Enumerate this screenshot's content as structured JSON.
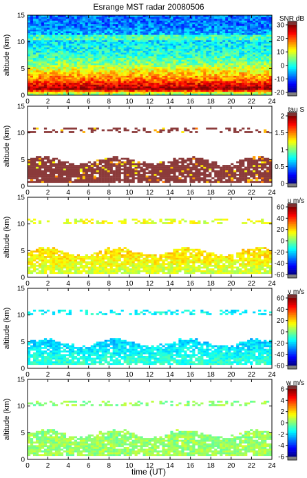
{
  "chart_data": {
    "type": "heatmap",
    "title": "Esrange MST radar 20080506",
    "xlabel": "time (UT)",
    "xlim": [
      0,
      24
    ],
    "xticks": [
      0,
      2,
      4,
      6,
      8,
      10,
      12,
      14,
      16,
      18,
      20,
      22,
      24
    ],
    "panels": [
      {
        "id": "snr",
        "ylabel": "altitude (km)",
        "ylim": [
          0,
          15
        ],
        "yticks": [
          0,
          5,
          10,
          15
        ],
        "colorbar_label": "SNR dB",
        "clim": [
          -20,
          30
        ],
        "cticks": [
          30,
          20,
          10,
          0,
          -10,
          -20
        ],
        "profile": [
          {
            "alt": 0.3,
            "value": 5
          },
          {
            "alt": 1.2,
            "value": 30
          },
          {
            "alt": 2.0,
            "value": 24
          },
          {
            "alt": 3.0,
            "value": 18
          },
          {
            "alt": 4.5,
            "value": 12
          },
          {
            "alt": 6.0,
            "value": 5
          },
          {
            "alt": 8.0,
            "value": 0
          },
          {
            "alt": 10.5,
            "value": -3
          },
          {
            "alt": 13.0,
            "value": -8
          },
          {
            "alt": 15.0,
            "value": -8
          }
        ]
      },
      {
        "id": "tau",
        "ylabel": "altitude (km)",
        "ylim": [
          0,
          15
        ],
        "yticks": [
          0,
          5,
          10,
          15
        ],
        "colorbar_label": "tau S",
        "clim": [
          0,
          2
        ],
        "cticks": [
          2,
          1.5,
          1,
          0.5,
          0
        ],
        "profile": [
          {
            "alt": 1.5,
            "value": 2.0
          },
          {
            "alt": 3.0,
            "value": 1.9
          },
          {
            "alt": 5.0,
            "value": 1.95
          },
          {
            "alt": 10.5,
            "value": 2.0
          }
        ]
      },
      {
        "id": "u",
        "ylabel": "altitude (km)",
        "ylim": [
          0,
          15
        ],
        "yticks": [
          0,
          5,
          10,
          15
        ],
        "colorbar_label": "u m/s",
        "clim": [
          -60,
          60
        ],
        "cticks": [
          60,
          40,
          20,
          0,
          -20,
          -40,
          -60
        ],
        "profile": [
          {
            "alt": 1.5,
            "value": 10
          },
          {
            "alt": 3.0,
            "value": 15
          },
          {
            "alt": 4.5,
            "value": 18
          },
          {
            "alt": 10.5,
            "value": 12
          }
        ]
      },
      {
        "id": "v",
        "ylabel": "altitude (km)",
        "ylim": [
          0,
          15
        ],
        "yticks": [
          0,
          5,
          10,
          15
        ],
        "colorbar_label": "v m/s",
        "clim": [
          -60,
          60
        ],
        "cticks": [
          60,
          40,
          20,
          0,
          -20,
          -40,
          -60
        ],
        "profile": [
          {
            "alt": 1.5,
            "value": -10
          },
          {
            "alt": 3.0,
            "value": -15
          },
          {
            "alt": 5.0,
            "value": -20
          },
          {
            "alt": 10.5,
            "value": -15
          }
        ]
      },
      {
        "id": "w",
        "ylabel": "altitude (km)",
        "ylim": [
          0,
          15
        ],
        "yticks": [
          0,
          5,
          10,
          15
        ],
        "colorbar_label": "w m/s",
        "clim": [
          -6,
          6
        ],
        "cticks": [
          6,
          4,
          2,
          0,
          -2,
          -4,
          -6
        ],
        "profile": [
          {
            "alt": 1.5,
            "value": 0.3
          },
          {
            "alt": 3.0,
            "value": 0.3
          },
          {
            "alt": 5.0,
            "value": 0.2
          },
          {
            "alt": 10.5,
            "value": 0.2
          }
        ]
      }
    ]
  },
  "colors": {
    "jet": [
      "#00007f",
      "#0000ff",
      "#007fff",
      "#00ffff",
      "#7fff7f",
      "#ffff00",
      "#ff7f00",
      "#ff0000",
      "#7f0000"
    ],
    "below_min": "#808080",
    "above_max": "#7f3030",
    "tau_main": "#8b3a3a"
  }
}
